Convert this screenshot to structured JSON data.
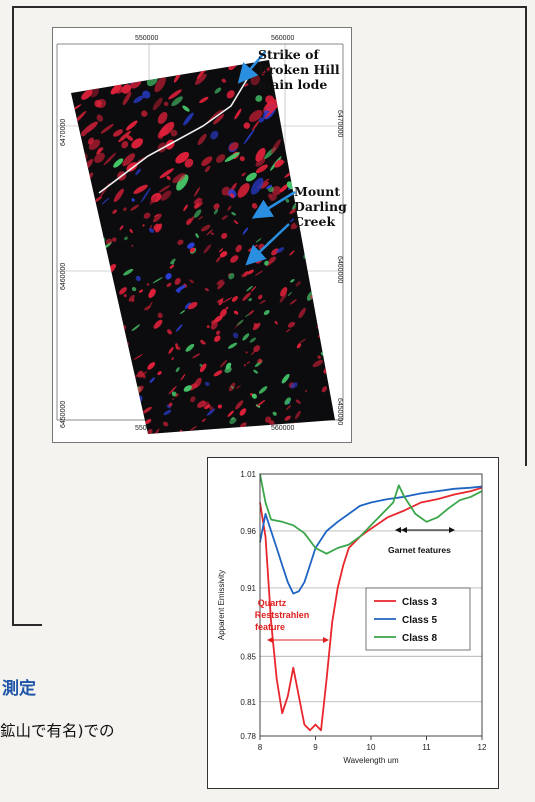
{
  "map": {
    "x_ticks": [
      "550000",
      "560000"
    ],
    "y_ticks": [
      "6470000",
      "6460000",
      "6450000"
    ],
    "annotation_broken_hill": [
      "Strike of",
      "Broken Hill",
      "main lode"
    ],
    "annotation_mount_darling": [
      "Mount",
      "Darling",
      "Creek"
    ],
    "arrow_color": "#2a8fe0",
    "image_colors": {
      "red": "#e0213a",
      "green": "#47c86a",
      "blue": "#2a3fd8",
      "background": "#0c0c0e"
    }
  },
  "text": {
    "heading_fragment": "測定",
    "line_fragment": "鉱山で有名)での"
  },
  "chart_data": {
    "type": "line",
    "title": "",
    "xlabel": "Wavelength um",
    "ylabel": "Apparent Emissivity",
    "xlim": [
      8,
      12
    ],
    "ylim": [
      0.78,
      1.01
    ],
    "x_ticks": [
      8,
      9,
      10,
      11,
      12
    ],
    "x_tick_labels": [
      "8",
      "9",
      "10",
      "11",
      "12"
    ],
    "y_ticks": [
      0.78,
      0.81,
      0.85,
      0.91,
      0.96,
      1.01
    ],
    "y_tick_labels": [
      "0.78",
      "0.81",
      "0.85",
      "0.91",
      "0.96",
      "1.01"
    ],
    "grid": true,
    "legend_position": "center-right",
    "annotations": [
      {
        "label_lines": [
          "Quartz",
          "Reststrahlen",
          "feature"
        ],
        "color": "#e02020"
      },
      {
        "label_lines": [
          "Garnet features"
        ],
        "color": "#111111"
      }
    ],
    "series": [
      {
        "name": "Class 3",
        "color": "#e8262c",
        "x": [
          8.0,
          8.1,
          8.2,
          8.3,
          8.4,
          8.5,
          8.6,
          8.7,
          8.8,
          8.9,
          9.0,
          9.1,
          9.2,
          9.3,
          9.4,
          9.5,
          9.6,
          9.8,
          10.0,
          10.3,
          10.6,
          10.9,
          11.2,
          11.5,
          11.8,
          12.0
        ],
        "y": [
          0.985,
          0.955,
          0.88,
          0.83,
          0.8,
          0.815,
          0.84,
          0.815,
          0.79,
          0.785,
          0.79,
          0.785,
          0.83,
          0.88,
          0.91,
          0.93,
          0.945,
          0.955,
          0.962,
          0.972,
          0.978,
          0.985,
          0.988,
          0.992,
          0.995,
          0.998
        ]
      },
      {
        "name": "Class 5",
        "color": "#1f64c2",
        "x": [
          8.0,
          8.1,
          8.2,
          8.3,
          8.4,
          8.5,
          8.6,
          8.7,
          8.8,
          8.9,
          9.0,
          9.2,
          9.4,
          9.6,
          9.8,
          10.0,
          10.3,
          10.6,
          10.9,
          11.2,
          11.5,
          11.8,
          12.0
        ],
        "y": [
          0.95,
          0.975,
          0.96,
          0.945,
          0.93,
          0.915,
          0.905,
          0.907,
          0.915,
          0.93,
          0.945,
          0.96,
          0.968,
          0.975,
          0.982,
          0.985,
          0.988,
          0.99,
          0.993,
          0.995,
          0.997,
          0.998,
          0.999
        ]
      },
      {
        "name": "Class 8",
        "color": "#3aa64a",
        "x": [
          8.0,
          8.1,
          8.2,
          8.4,
          8.6,
          8.8,
          9.0,
          9.2,
          9.4,
          9.6,
          9.8,
          10.0,
          10.2,
          10.4,
          10.5,
          10.6,
          10.8,
          11.0,
          11.2,
          11.4,
          11.6,
          11.8,
          12.0
        ],
        "y": [
          1.01,
          0.985,
          0.97,
          0.968,
          0.965,
          0.958,
          0.945,
          0.94,
          0.945,
          0.948,
          0.955,
          0.965,
          0.975,
          0.985,
          1.0,
          0.99,
          0.975,
          0.968,
          0.972,
          0.98,
          0.987,
          0.99,
          0.995
        ]
      }
    ]
  }
}
